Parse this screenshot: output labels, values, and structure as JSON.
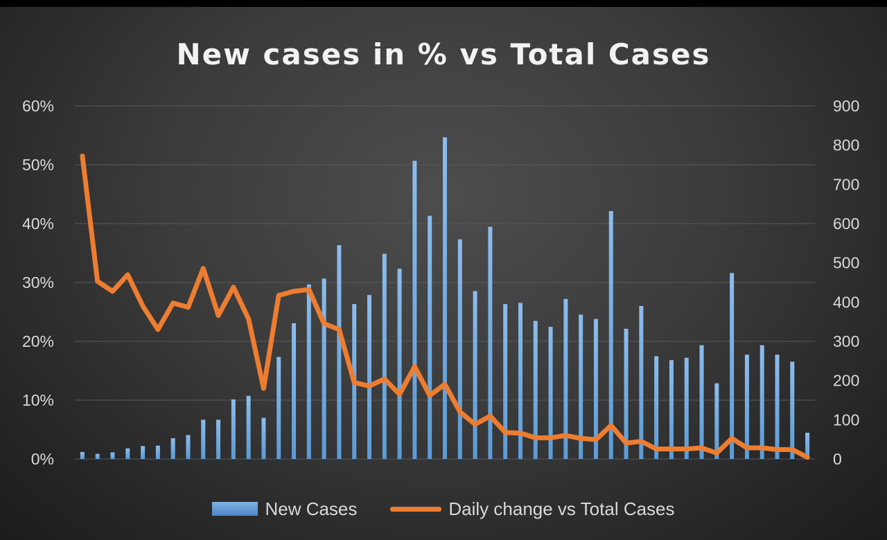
{
  "chart_data": {
    "type": "bar+line",
    "title": "New cases in % vs Total Cases",
    "left_axis": {
      "ticks": [
        "0%",
        "10%",
        "20%",
        "30%",
        "40%",
        "50%",
        "60%"
      ],
      "range": [
        0,
        60
      ],
      "unit": "%"
    },
    "right_axis": {
      "ticks": [
        "0",
        "100",
        "200",
        "300",
        "400",
        "500",
        "600",
        "700",
        "800",
        "900"
      ],
      "range": [
        0,
        900
      ]
    },
    "grid": "horizontal",
    "legend_position": "bottom",
    "series": [
      {
        "name": "New Cases",
        "kind": "bar",
        "axis": "right",
        "color": "#5b9bd5",
        "values": [
          18,
          13,
          17,
          27,
          33,
          34,
          53,
          61,
          100,
          100,
          152,
          161,
          105,
          260,
          346,
          445,
          460,
          545,
          395,
          418,
          523,
          485,
          760,
          620,
          820,
          560,
          428,
          592,
          395,
          398,
          352,
          337,
          408,
          368,
          357,
          632,
          332,
          390,
          262,
          252,
          258,
          290,
          193,
          474,
          266,
          290,
          266,
          248,
          67
        ]
      },
      {
        "name": "Daily change vs Total Cases",
        "kind": "line",
        "axis": "left",
        "color": "#ed7d31",
        "values": [
          51.5,
          30.2,
          28.5,
          31.3,
          26.0,
          22.0,
          26.5,
          25.8,
          32.4,
          24.4,
          29.2,
          23.8,
          12.0,
          27.8,
          28.5,
          28.8,
          23.0,
          22.0,
          13.0,
          12.4,
          13.6,
          11.0,
          15.7,
          10.8,
          12.7,
          8.0,
          5.9,
          7.3,
          4.5,
          4.4,
          3.6,
          3.6,
          4.0,
          3.5,
          3.3,
          5.7,
          2.7,
          3.0,
          1.7,
          1.7,
          1.7,
          1.9,
          1.0,
          3.5,
          1.9,
          1.9,
          1.6,
          1.6,
          0.3
        ]
      }
    ]
  }
}
